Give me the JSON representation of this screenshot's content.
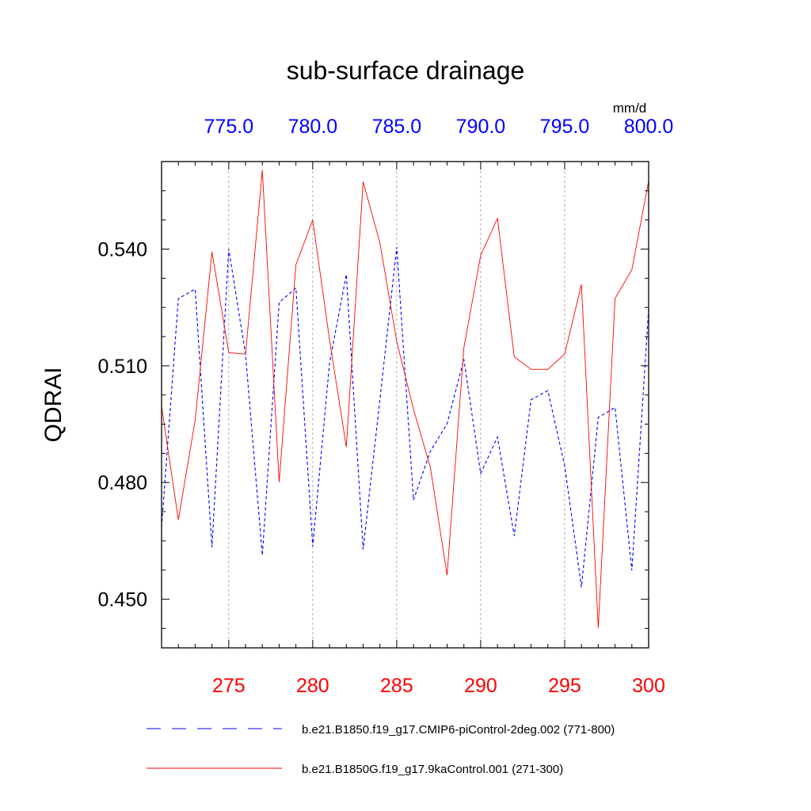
{
  "chart_data": {
    "type": "line",
    "title": "sub-surface drainage",
    "ylabel": "QDRAI",
    "units": "mm/d",
    "ylim": [
      0.4375,
      0.5625
    ],
    "yticks": [
      "0.450",
      "0.480",
      "0.510",
      "0.540"
    ],
    "ytick_values": [
      0.45,
      0.48,
      0.51,
      0.54
    ],
    "bottom_axis": {
      "range": [
        271,
        300
      ],
      "ticks": [
        "275",
        "280",
        "285",
        "290",
        "295",
        "300"
      ],
      "tick_values": [
        275,
        280,
        285,
        290,
        295,
        300
      ],
      "color": "#ff0000"
    },
    "top_axis": {
      "range": [
        771,
        800
      ],
      "ticks": [
        "775.0",
        "780.0",
        "785.0",
        "790.0",
        "795.0",
        "800.0"
      ],
      "tick_values": [
        775,
        780,
        785,
        790,
        795,
        800
      ],
      "color": "#0000ff"
    },
    "gridlines": "vertical dotted at major ticks",
    "series": [
      {
        "name": "b.e21.B1850.f19_g17.CMIP6-piControl-2deg.002 (771-800)",
        "axis": "top",
        "color": "#0000ff",
        "style": "dashed",
        "x": [
          771,
          772,
          773,
          774,
          775,
          776,
          777,
          778,
          779,
          780,
          781,
          782,
          783,
          784,
          785,
          786,
          787,
          788,
          789,
          790,
          791,
          792,
          793,
          794,
          795,
          796,
          797,
          798,
          799,
          800
        ],
        "values": [
          0.4685,
          0.5273,
          0.5297,
          0.4634,
          0.54,
          0.5129,
          0.4613,
          0.5263,
          0.53,
          0.4636,
          0.5107,
          0.5335,
          0.4628,
          0.5013,
          0.5405,
          0.4755,
          0.488,
          0.4951,
          0.5117,
          0.4823,
          0.4917,
          0.4663,
          0.5013,
          0.5036,
          0.4843,
          0.4531,
          0.4967,
          0.4993,
          0.4574,
          0.5246
        ]
      },
      {
        "name": "b.e21.B1850G.f19_g17.9kaControl.001 (271-300)",
        "axis": "bottom",
        "color": "#ff0000",
        "style": "solid",
        "x": [
          271,
          272,
          273,
          274,
          275,
          276,
          277,
          278,
          279,
          280,
          281,
          282,
          283,
          284,
          285,
          286,
          287,
          288,
          289,
          290,
          291,
          292,
          293,
          294,
          295,
          296,
          297,
          298,
          299,
          300
        ],
        "values": [
          0.4996,
          0.4704,
          0.496,
          0.5393,
          0.5134,
          0.513,
          0.5603,
          0.4801,
          0.536,
          0.5475,
          0.5167,
          0.4891,
          0.5573,
          0.5416,
          0.5163,
          0.4988,
          0.484,
          0.4562,
          0.5147,
          0.5384,
          0.5479,
          0.5123,
          0.5091,
          0.5091,
          0.513,
          0.5309,
          0.4426,
          0.5273,
          0.5347,
          0.5575
        ]
      }
    ]
  }
}
